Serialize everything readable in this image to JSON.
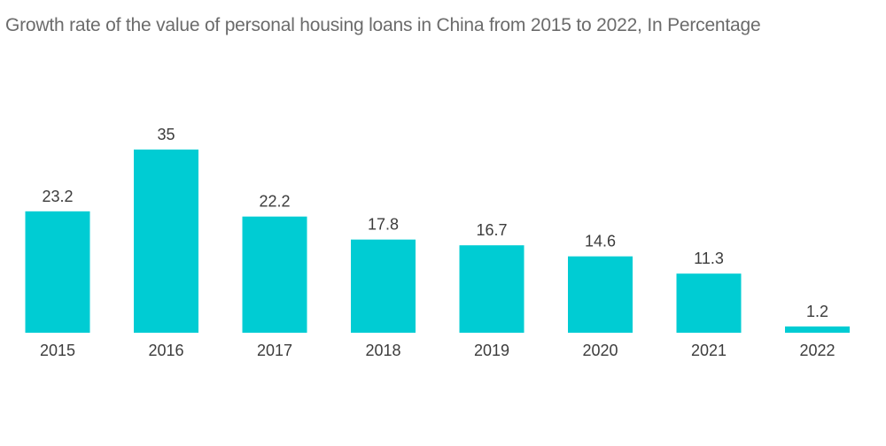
{
  "chart_data": {
    "type": "bar",
    "title": "Growth rate of the value of personal housing loans in China from 2015 to 2022, In Percentage",
    "categories": [
      "2015",
      "2016",
      "2017",
      "2018",
      "2019",
      "2020",
      "2021",
      "2022"
    ],
    "values": [
      23.2,
      35,
      22.2,
      17.8,
      16.7,
      14.6,
      11.3,
      1.2
    ],
    "xlabel": "",
    "ylabel": "",
    "ylim": [
      0,
      35
    ],
    "grid": false,
    "bar_color": "#00ccd3",
    "text_color": "#3c3c3c"
  }
}
